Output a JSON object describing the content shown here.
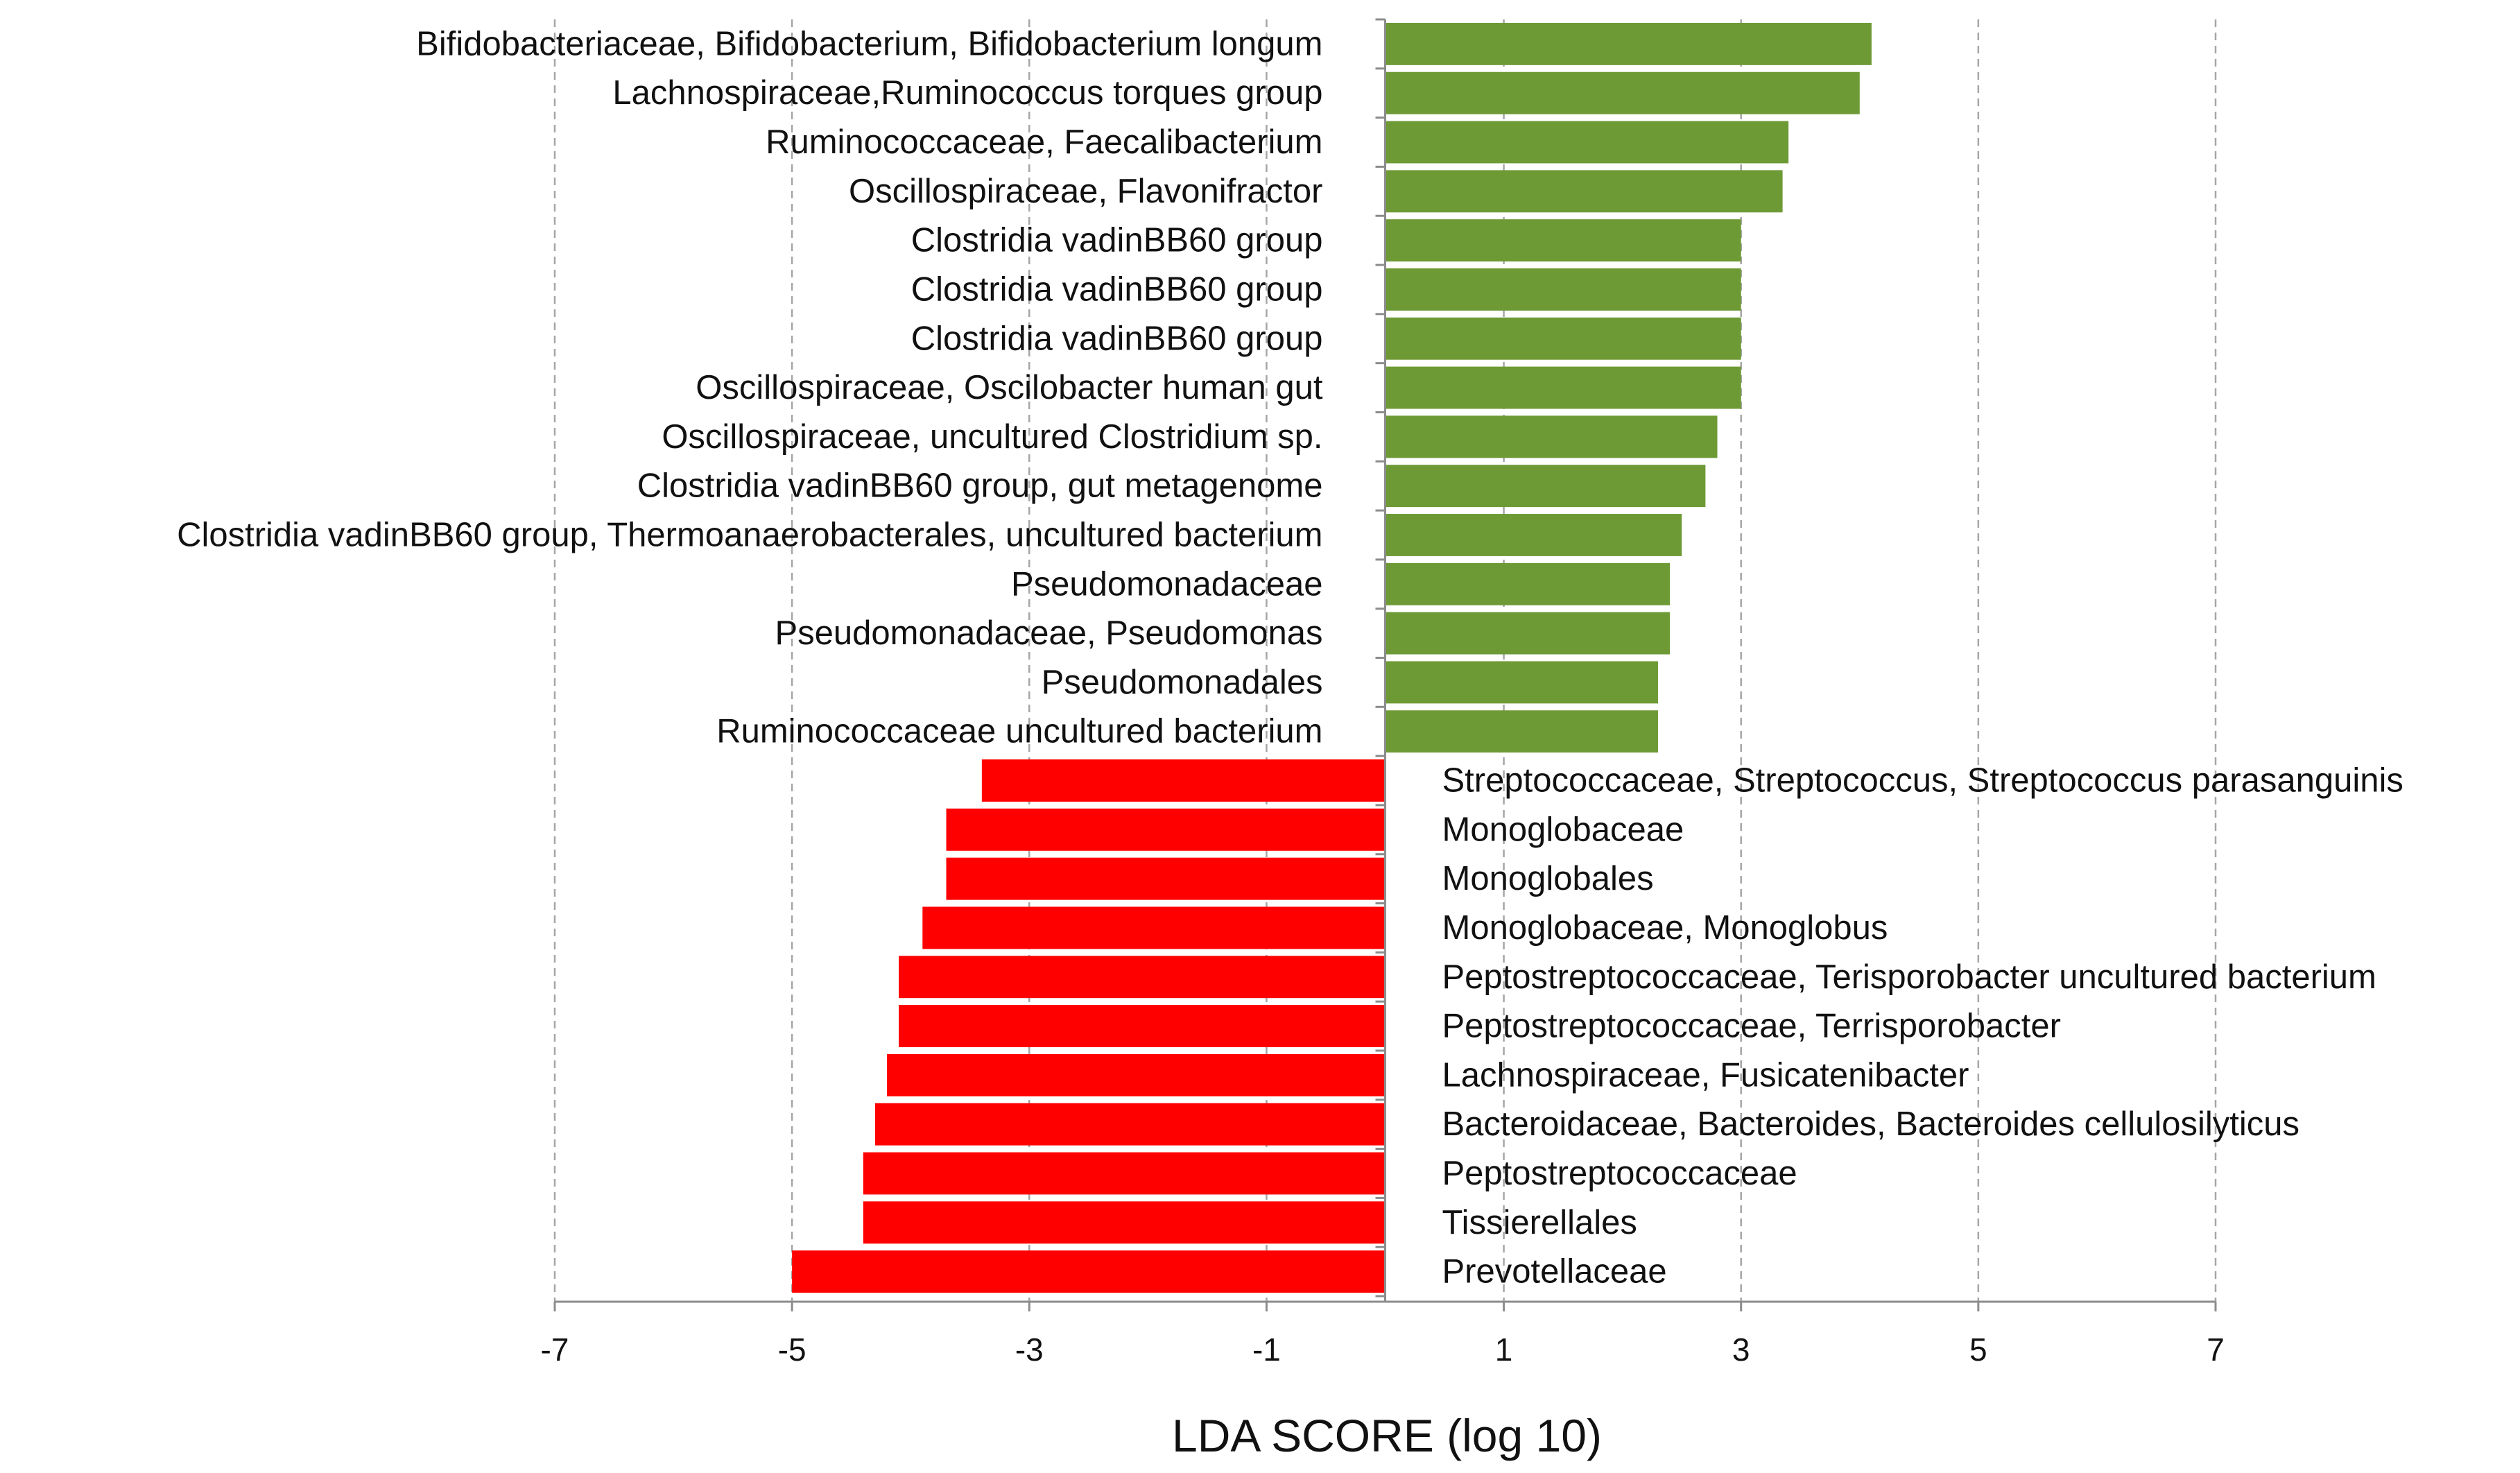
{
  "chart_data": {
    "type": "bar",
    "orientation": "horizontal",
    "xlabel": "LDA SCORE (log 10)",
    "xlim": [
      -7,
      7
    ],
    "xticks": [
      -7,
      -5,
      -3,
      -1,
      1,
      3,
      5,
      7
    ],
    "grid": "vertical dashed",
    "colors": {
      "positive": "#6E9A35",
      "negative": "#FF0000"
    },
    "categories": [
      "Bifidobacteriaceae, Bifidobacterium, Bifidobacterium longum",
      "Lachnospiraceae,Ruminococcus torques group",
      "Ruminococcaceae, Faecalibacterium",
      "Oscillospiraceae, Flavonifractor",
      "Clostridia vadinBB60 group",
      "Clostridia vadinBB60 group",
      "Clostridia vadinBB60 group",
      "Oscillospiraceae, Oscilobacter human gut",
      "Oscillospiraceae, uncultured Clostridium sp.",
      "Clostridia vadinBB60 group, gut metagenome",
      "Clostridia vadinBB60 group, Thermoanaerobacterales, uncultured bacterium",
      "Pseudomonadaceae",
      "Pseudomonadaceae, Pseudomonas",
      "Pseudomonadales",
      "Ruminococcaceae uncultured bacterium",
      "Streptococcaceae, Streptococcus, Streptococcus parasanguinis",
      "Monoglobaceae",
      "Monoglobales",
      "Monoglobaceae, Monoglobus",
      "Peptostreptococcaceae, Terisporobacter uncultured bacterium",
      "Peptostreptococcaceae, Terrisporobacter",
      "Lachnospiraceae, Fusicatenibacter",
      "Bacteroidaceae, Bacteroides, Bacteroides cellulosilyticus",
      "Peptostreptococcaceae",
      "Tissierellales",
      "Prevotellaceae"
    ],
    "values": [
      4.1,
      4.0,
      3.4,
      3.35,
      3.0,
      3.0,
      3.0,
      3.0,
      2.8,
      2.7,
      2.5,
      2.4,
      2.4,
      2.3,
      2.3,
      -3.4,
      -3.7,
      -3.7,
      -3.9,
      -4.1,
      -4.1,
      -4.2,
      -4.3,
      -4.4,
      -4.4,
      -5.0
    ]
  }
}
